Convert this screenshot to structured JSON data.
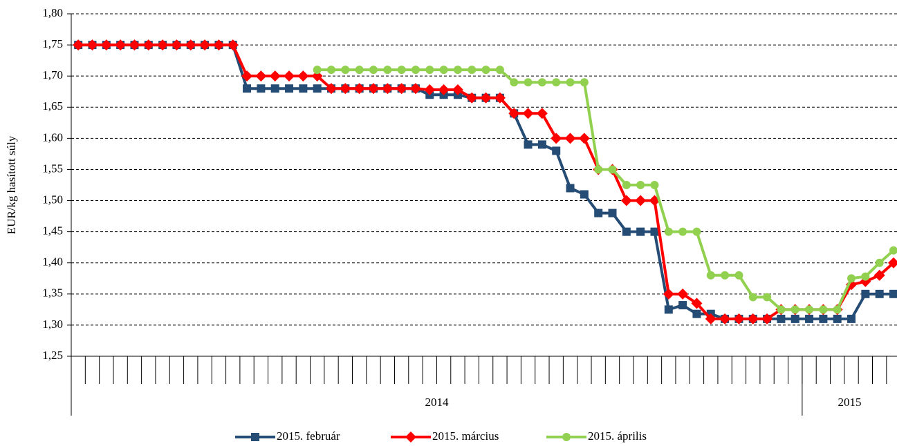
{
  "chart_data": {
    "type": "line",
    "y_label": "EUR/kg hasított súly",
    "categories": [
      null,
      null,
      null,
      null,
      null,
      null,
      null,
      null,
      null,
      null,
      null,
      null,
      null,
      null,
      null,
      null,
      null,
      null,
      null,
      null,
      null,
      null,
      null,
      null,
      null,
      null,
      null,
      null,
      null,
      null,
      null,
      null,
      null,
      null,
      null,
      null,
      null,
      null,
      null,
      null,
      null,
      null,
      null,
      null,
      null,
      null,
      null,
      null,
      null,
      null,
      null,
      null,
      null,
      null,
      null,
      null,
      null,
      null,
      null
    ],
    "category_groups": [
      {
        "label": "2014",
        "count": 52
      },
      {
        "label": "2015",
        "count": 7
      }
    ],
    "ylim": [
      1.25,
      1.8
    ],
    "yticks": [
      {
        "value": 1.25,
        "label": "1,25"
      },
      {
        "value": 1.3,
        "label": "1,30"
      },
      {
        "value": 1.35,
        "label": "1,35"
      },
      {
        "value": 1.4,
        "label": "1,40"
      },
      {
        "value": 1.45,
        "label": "1,45"
      },
      {
        "value": 1.5,
        "label": "1,50"
      },
      {
        "value": 1.55,
        "label": "1,55"
      },
      {
        "value": 1.6,
        "label": "1,60"
      },
      {
        "value": 1.65,
        "label": "1,65"
      },
      {
        "value": 1.7,
        "label": "1,70"
      },
      {
        "value": 1.75,
        "label": "1,75"
      },
      {
        "value": 1.8,
        "label": "1,80"
      }
    ],
    "grid": true,
    "legend": "bottom",
    "series": [
      {
        "name": "2015. február",
        "color": "#254C75",
        "marker": "square",
        "values": [
          1.75,
          1.75,
          1.75,
          1.75,
          1.75,
          1.75,
          1.75,
          1.75,
          1.75,
          1.75,
          1.75,
          1.75,
          1.68,
          1.68,
          1.68,
          1.68,
          1.68,
          1.68,
          1.68,
          1.68,
          1.68,
          1.68,
          1.68,
          1.68,
          1.68,
          1.67,
          1.67,
          1.67,
          1.665,
          1.665,
          1.665,
          1.64,
          1.59,
          1.59,
          1.58,
          1.52,
          1.51,
          1.48,
          1.48,
          1.45,
          1.45,
          1.45,
          1.325,
          1.332,
          1.318,
          1.318,
          1.31,
          1.31,
          1.31,
          1.31,
          1.31,
          1.31,
          1.31,
          1.31,
          1.31,
          1.31,
          1.35,
          1.35,
          1.35
        ]
      },
      {
        "name": "2015. március",
        "color": "#FF0000",
        "marker": "diamond",
        "values": [
          1.75,
          1.75,
          1.75,
          1.75,
          1.75,
          1.75,
          1.75,
          1.75,
          1.75,
          1.75,
          1.75,
          1.75,
          1.7,
          1.7,
          1.7,
          1.7,
          1.7,
          1.7,
          1.68,
          1.68,
          1.68,
          1.68,
          1.68,
          1.68,
          1.68,
          1.678,
          1.678,
          1.678,
          1.665,
          1.665,
          1.665,
          1.64,
          1.64,
          1.64,
          1.6,
          1.6,
          1.6,
          1.55,
          1.55,
          1.5,
          1.5,
          1.5,
          1.35,
          1.35,
          1.335,
          1.31,
          1.31,
          1.31,
          1.31,
          1.31,
          1.325,
          1.325,
          1.325,
          1.325,
          1.325,
          1.365,
          1.37,
          1.38,
          1.4
        ]
      },
      {
        "name": "2015. április",
        "color": "#92D050",
        "marker": "circle",
        "values": [
          null,
          null,
          null,
          null,
          null,
          null,
          null,
          null,
          null,
          null,
          null,
          null,
          null,
          null,
          null,
          null,
          null,
          1.71,
          1.71,
          1.71,
          1.71,
          1.71,
          1.71,
          1.71,
          1.71,
          1.71,
          1.71,
          1.71,
          1.71,
          1.71,
          1.71,
          1.69,
          1.69,
          1.69,
          1.69,
          1.69,
          1.69,
          1.55,
          1.55,
          1.525,
          1.525,
          1.525,
          1.45,
          1.45,
          1.45,
          1.38,
          1.38,
          1.38,
          1.345,
          1.345,
          1.325,
          1.325,
          1.325,
          1.325,
          1.325,
          1.375,
          1.378,
          1.4,
          1.42
        ]
      }
    ]
  }
}
